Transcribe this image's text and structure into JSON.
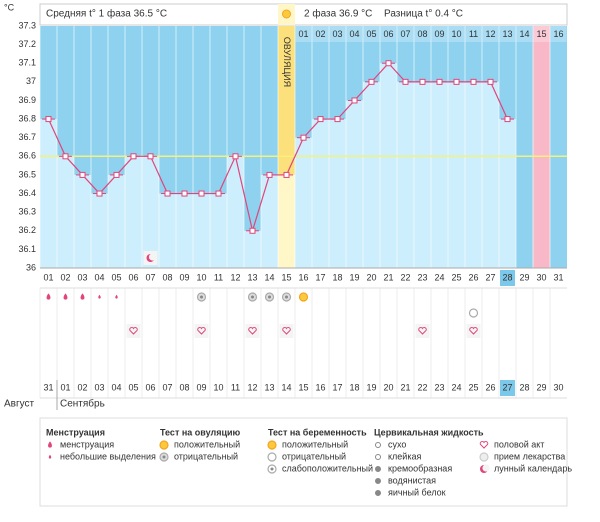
{
  "chart_data": {
    "type": "line",
    "unit_label": "°C",
    "header": {
      "phase1": "Средняя t° 1 фаза 36.5 °C",
      "phase2": "2 фаза 36.9 °C",
      "difference": "Разница t° 0.4 °C"
    },
    "categories": [
      "01",
      "02",
      "03",
      "04",
      "05",
      "06",
      "07",
      "08",
      "09",
      "10",
      "11",
      "12",
      "13",
      "14",
      "15",
      "16",
      "17",
      "18",
      "19",
      "20",
      "21",
      "22",
      "23",
      "24",
      "25",
      "26",
      "27",
      "28",
      "29",
      "30",
      "31"
    ],
    "values": [
      36.8,
      36.6,
      36.5,
      36.4,
      36.5,
      36.6,
      36.6,
      36.4,
      36.4,
      36.4,
      36.4,
      36.6,
      36.2,
      36.5,
      36.5,
      36.7,
      36.8,
      36.8,
      36.9,
      37.0,
      37.1,
      37.0,
      37.0,
      37.0,
      37.0,
      37.0,
      37.0,
      36.8,
      null,
      null,
      null
    ],
    "color": "#e0457b",
    "cover_line": 36.6,
    "ylim": [
      36,
      37.3
    ],
    "yticks": [
      36,
      36.1,
      36.2,
      36.3,
      36.4,
      36.5,
      36.6,
      36.7,
      36.8,
      36.9,
      37,
      37.1,
      37.2,
      37.3
    ],
    "ovulation": {
      "day": "15",
      "label": "ОВУЛЯЦИЯ"
    },
    "phase2_days": [
      "01",
      "02",
      "03",
      "04",
      "05",
      "06",
      "07",
      "08",
      "09",
      "10",
      "11",
      "12",
      "13",
      "14",
      "15",
      "16"
    ],
    "highlight_day": "30",
    "highlight_color": "#f9b8c8",
    "today": "28",
    "dates": [
      "31",
      "01",
      "02",
      "03",
      "04",
      "05",
      "06",
      "07",
      "08",
      "09",
      "10",
      "11",
      "12",
      "13",
      "14",
      "15",
      "16",
      "17",
      "18",
      "19",
      "20",
      "21",
      "22",
      "23",
      "24",
      "25",
      "26",
      "27",
      "28",
      "29",
      "30"
    ],
    "weekend": [
      "01",
      "02",
      "08",
      "09",
      "15",
      "16",
      "22",
      "23",
      "29",
      "30"
    ],
    "months": [
      "Август",
      "Сентябрь"
    ],
    "legend": [
      {
        "title": "Менструация",
        "items": [
          {
            "label": "менструация",
            "days": [
              "01",
              "02",
              "03"
            ]
          },
          {
            "label": "небольшие выделения",
            "days": [
              "04",
              "05"
            ]
          }
        ]
      },
      {
        "title": "Тест на овуляцию",
        "items": [
          {
            "label": "положительный",
            "days": [
              "16"
            ]
          },
          {
            "label": "отрицательный",
            "days": [
              "10",
              "13",
              "14",
              "15"
            ]
          }
        ]
      },
      {
        "title": "Тест на беременность",
        "items": [
          {
            "label": "положительный",
            "days": []
          },
          {
            "label": "отрицательный",
            "days": [
              "26"
            ]
          },
          {
            "label": "слабоположительный",
            "days": []
          }
        ]
      },
      {
        "title": "Цервикальная жидкость",
        "items": [
          {
            "label": "сухо",
            "days": []
          },
          {
            "label": "клейкая",
            "days": []
          },
          {
            "label": "кремообразная",
            "days": []
          },
          {
            "label": "водянистая",
            "days": []
          },
          {
            "label": "яичный белок",
            "days": []
          }
        ]
      },
      {
        "items": [
          {
            "label": "половой акт",
            "days": [
              "06",
              "10",
              "13",
              "15",
              "23",
              "26"
            ]
          },
          {
            "label": "прием лекарства",
            "days": []
          },
          {
            "label": "лунный календарь",
            "days": [
              "07"
            ]
          }
        ]
      }
    ]
  }
}
